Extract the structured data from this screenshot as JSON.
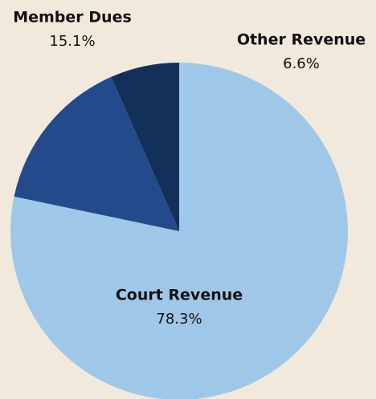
{
  "chart_data": {
    "type": "pie",
    "categories": [
      "Court Revenue",
      "Member Dues",
      "Other Revenue"
    ],
    "values": [
      78.3,
      15.1,
      6.6
    ],
    "value_labels": [
      "78.3%",
      "15.1%",
      "6.6%"
    ],
    "colors": [
      "#9fc8e8",
      "#234b8c",
      "#13305a"
    ]
  }
}
